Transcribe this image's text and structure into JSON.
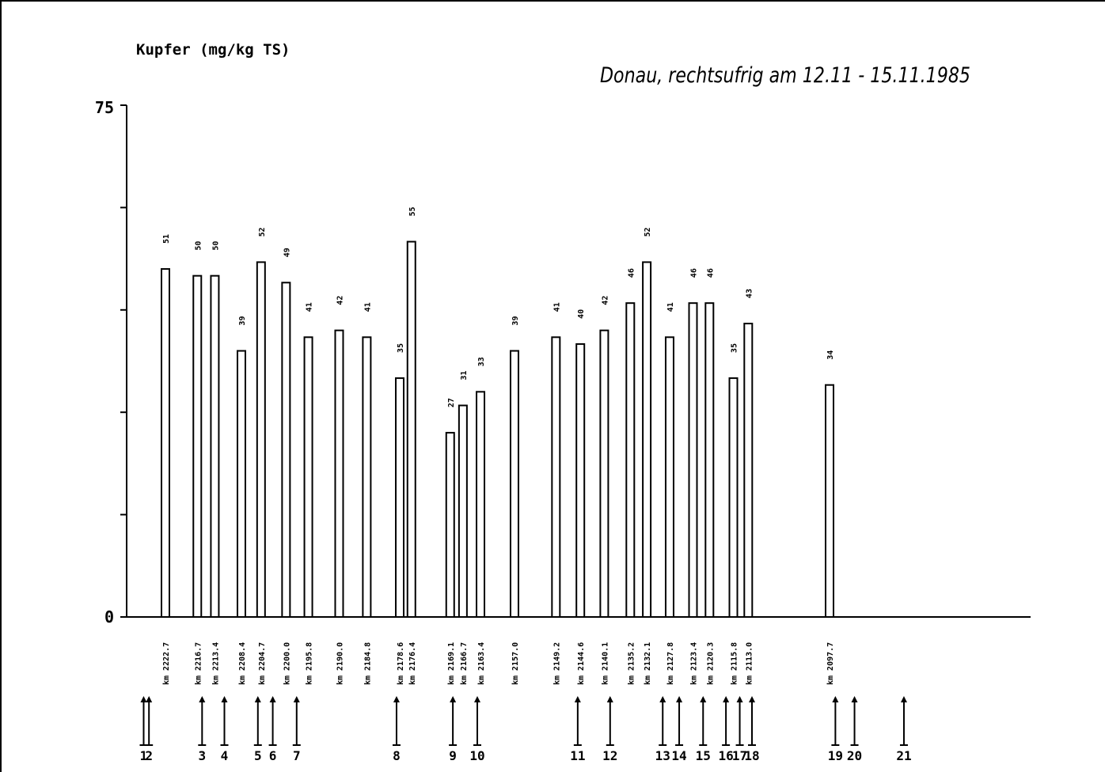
{
  "chart_data": {
    "type": "bar",
    "title": "Donau, rechtsufrig am 12.11 - 15.11.1985",
    "ylabel": "Kupfer (mg/kg TS)",
    "xlabel": "",
    "ylim": [
      0,
      75
    ],
    "y_tick_labels": [
      "0",
      "75"
    ],
    "y_ticks": [
      0,
      15,
      30,
      45,
      60,
      75
    ],
    "grid": false,
    "categories": [
      "km 2222.7",
      "km 2216.7",
      "km 2213.4",
      "km 2208.4",
      "km 2204.7",
      "km 2200.0",
      "km 2195.8",
      "km 2190.0",
      "km 2184.8",
      "km 2178.6",
      "km 2176.4",
      "km 2169.1",
      "km 2166.7",
      "km 2163.4",
      "km 2157.0",
      "km 2149.2",
      "km 2144.6",
      "km 2140.1",
      "km 2135.2",
      "km 2132.1",
      "km 2127.8",
      "km 2123.4",
      "km 2120.3",
      "km 2115.8",
      "km 2113.0",
      "km 2097.7"
    ],
    "x_km": [
      2222.7,
      2216.7,
      2213.4,
      2208.4,
      2204.7,
      2200.0,
      2195.8,
      2190.0,
      2184.8,
      2178.6,
      2176.4,
      2169.1,
      2166.7,
      2163.4,
      2157.0,
      2149.2,
      2144.6,
      2140.1,
      2135.2,
      2132.1,
      2127.8,
      2123.4,
      2120.3,
      2115.8,
      2113.0,
      2097.7
    ],
    "values": [
      51,
      50,
      50,
      39,
      52,
      49,
      41,
      42,
      41,
      35,
      55,
      27,
      31,
      33,
      39,
      41,
      40,
      42,
      46,
      52,
      41,
      46,
      46,
      35,
      43,
      34
    ],
    "value_labels": [
      "51",
      "50",
      "50",
      "39",
      "52",
      "49",
      "41",
      "42",
      "41",
      "35",
      "55",
      "27",
      "31",
      "33",
      "39",
      "41",
      "40",
      "42",
      "46",
      "52",
      "41",
      "46",
      "46",
      "35",
      "43",
      "34"
    ],
    "markers": [
      "1",
      "2",
      "3",
      "4",
      "5",
      "6",
      "7",
      "8",
      "9",
      "10",
      "11",
      "12",
      "13",
      "14",
      "15",
      "16",
      "17",
      "18",
      "19",
      "20",
      "21"
    ],
    "marker_km": [
      2226.8,
      2225.8,
      2215.8,
      2211.6,
      2205.3,
      2202.5,
      2198.0,
      2179.2,
      2168.6,
      2164.0,
      2145.1,
      2139.0,
      2129.1,
      2126.0,
      2121.5,
      2117.2,
      2114.6,
      2112.3,
      2096.6,
      2093.0,
      2083.7
    ]
  }
}
